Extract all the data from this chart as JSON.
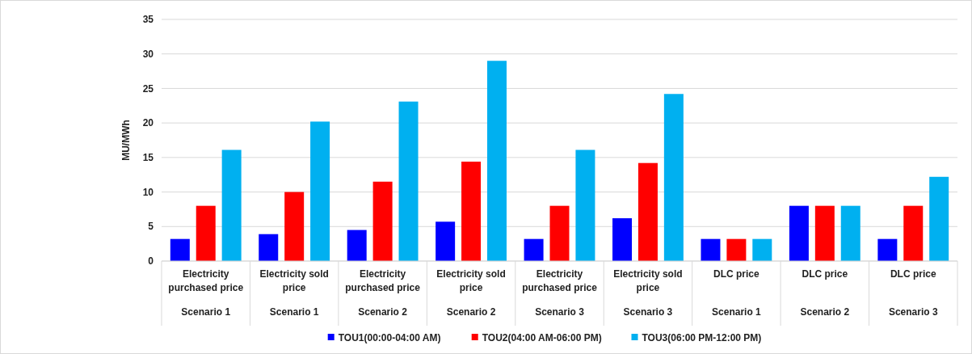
{
  "chart_data": {
    "type": "bar",
    "ylabel": "MU/MWh",
    "categories": [
      "Electricity purchased price\nScenario 1",
      "Electricity sold price\nScenario 1",
      "Electricity purchased price\nScenario 2",
      "Electricity sold price\nScenario 2",
      "Electricity purchased price\nScenario 3",
      "Electricity sold price\nScenario 3",
      "DLC price\nScenario 1",
      "DLC price\nScenario 2",
      "DLC price\nScenario 3"
    ],
    "series": [
      {
        "name": "TOU1(00:00-04:00 AM)",
        "color": "#0000ff",
        "values": [
          3.2,
          3.9,
          4.5,
          5.7,
          3.2,
          6.2,
          3.2,
          8,
          3.2
        ]
      },
      {
        "name": "TOU2(04:00 AM-06:00 PM)",
        "color": "#ff0000",
        "values": [
          8,
          10,
          11.5,
          14.4,
          8,
          14.2,
          3.2,
          8,
          8
        ]
      },
      {
        "name": "TOU3(06:00 PM-12:00 PM)",
        "color": "#00b0f0",
        "values": [
          16.1,
          20.2,
          23.1,
          29,
          16.1,
          24.2,
          3.2,
          8,
          12.2
        ]
      }
    ],
    "ylim": [
      0,
      35
    ],
    "yticks": [
      0,
      5,
      10,
      15,
      20,
      25,
      30,
      35
    ],
    "grid": "y",
    "legend": "bottom"
  }
}
